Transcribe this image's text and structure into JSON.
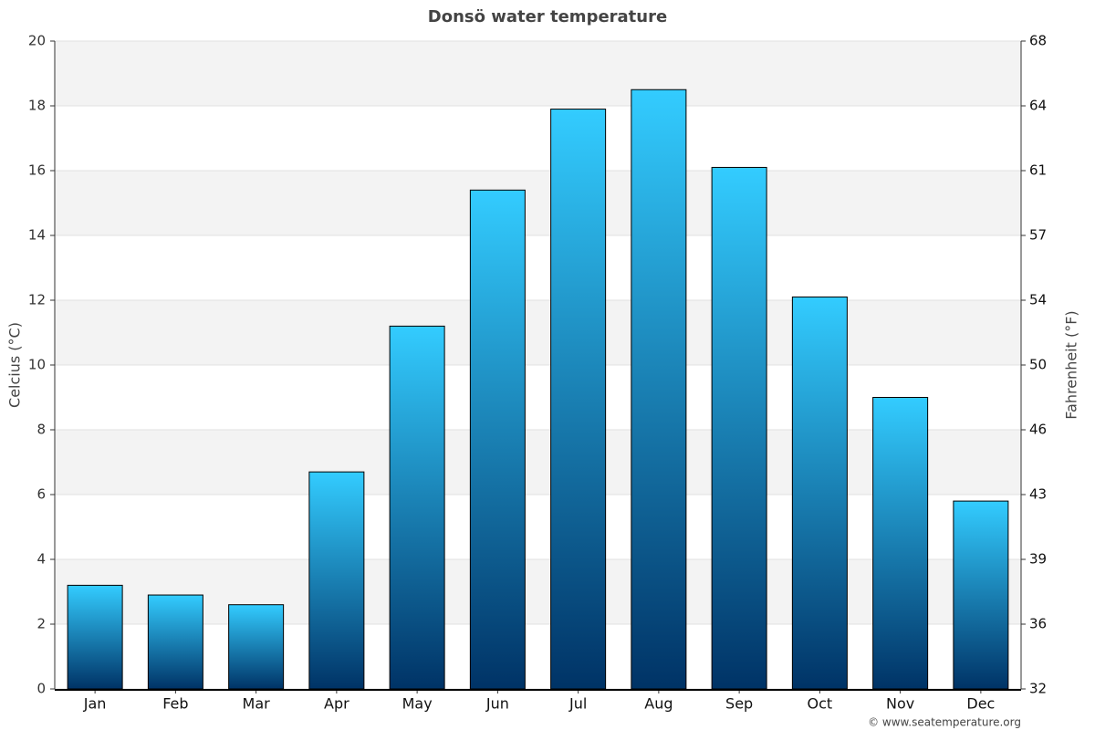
{
  "chart_data": {
    "type": "bar",
    "title": "Donsö water temperature",
    "categories": [
      "Jan",
      "Feb",
      "Mar",
      "Apr",
      "May",
      "Jun",
      "Jul",
      "Aug",
      "Sep",
      "Oct",
      "Nov",
      "Dec"
    ],
    "values": [
      3.2,
      2.9,
      2.6,
      6.7,
      11.2,
      15.4,
      17.9,
      18.5,
      16.1,
      12.1,
      9.0,
      5.8
    ],
    "color_top": "#33ccff",
    "color_bottom": "#003366",
    "ylabel": "Celcius (°C)",
    "y2label": "Fahrenheit (°F)",
    "ylim": [
      0,
      20
    ],
    "yticks": [
      0,
      2,
      4,
      6,
      8,
      10,
      12,
      14,
      16,
      18,
      20
    ],
    "y2lim": [
      32,
      68
    ],
    "y2ticks": [
      32,
      {
        "value": 35.6,
        "label": "36"
      },
      {
        "value": 39.2,
        "label": "39"
      },
      {
        "value": 42.8,
        "label": "43"
      },
      {
        "value": 46.4,
        "label": "46"
      },
      50,
      {
        "value": 53.6,
        "label": "54"
      },
      {
        "value": 57.2,
        "label": "57"
      },
      {
        "value": 60.8,
        "label": "61"
      },
      {
        "value": 64.4,
        "label": "64"
      },
      68
    ],
    "grid": true,
    "source": "© www.seatemperature.org"
  }
}
